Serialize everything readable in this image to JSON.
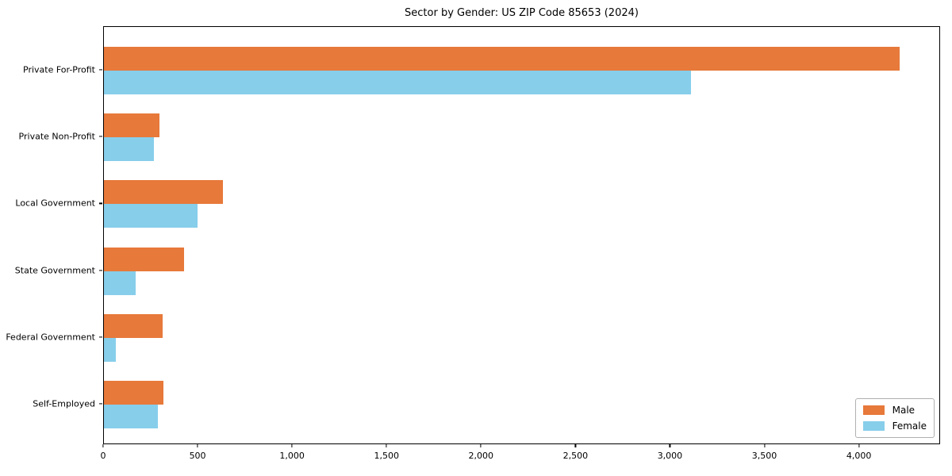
{
  "chart_data": {
    "type": "bar",
    "orientation": "horizontal",
    "title": "Sector by Gender: US ZIP Code 85653 (2024)",
    "categories": [
      "Private For-Profit",
      "Private Non-Profit",
      "Local Government",
      "State Government",
      "Federal Government",
      "Self-Employed"
    ],
    "series": [
      {
        "name": "Male",
        "color": "#e7793a",
        "values": [
          4220,
          295,
          630,
          425,
          310,
          315
        ]
      },
      {
        "name": "Female",
        "color": "#87ceeb",
        "values": [
          3115,
          265,
          495,
          170,
          65,
          285
        ]
      }
    ],
    "xlabel": "",
    "ylabel": "",
    "xlim": [
      0,
      4430
    ],
    "xticks": [
      {
        "value": 0,
        "label": "0"
      },
      {
        "value": 500,
        "label": "500"
      },
      {
        "value": 1000,
        "label": "1,000"
      },
      {
        "value": 1500,
        "label": "1,500"
      },
      {
        "value": 2000,
        "label": "2,000"
      },
      {
        "value": 2500,
        "label": "2,500"
      },
      {
        "value": 3000,
        "label": "3,000"
      },
      {
        "value": 3500,
        "label": "3,500"
      },
      {
        "value": 4000,
        "label": "4,000"
      }
    ],
    "legend_position": "lower right",
    "grid": false,
    "background_color": "#ffffff",
    "axis_color": "#000000"
  }
}
